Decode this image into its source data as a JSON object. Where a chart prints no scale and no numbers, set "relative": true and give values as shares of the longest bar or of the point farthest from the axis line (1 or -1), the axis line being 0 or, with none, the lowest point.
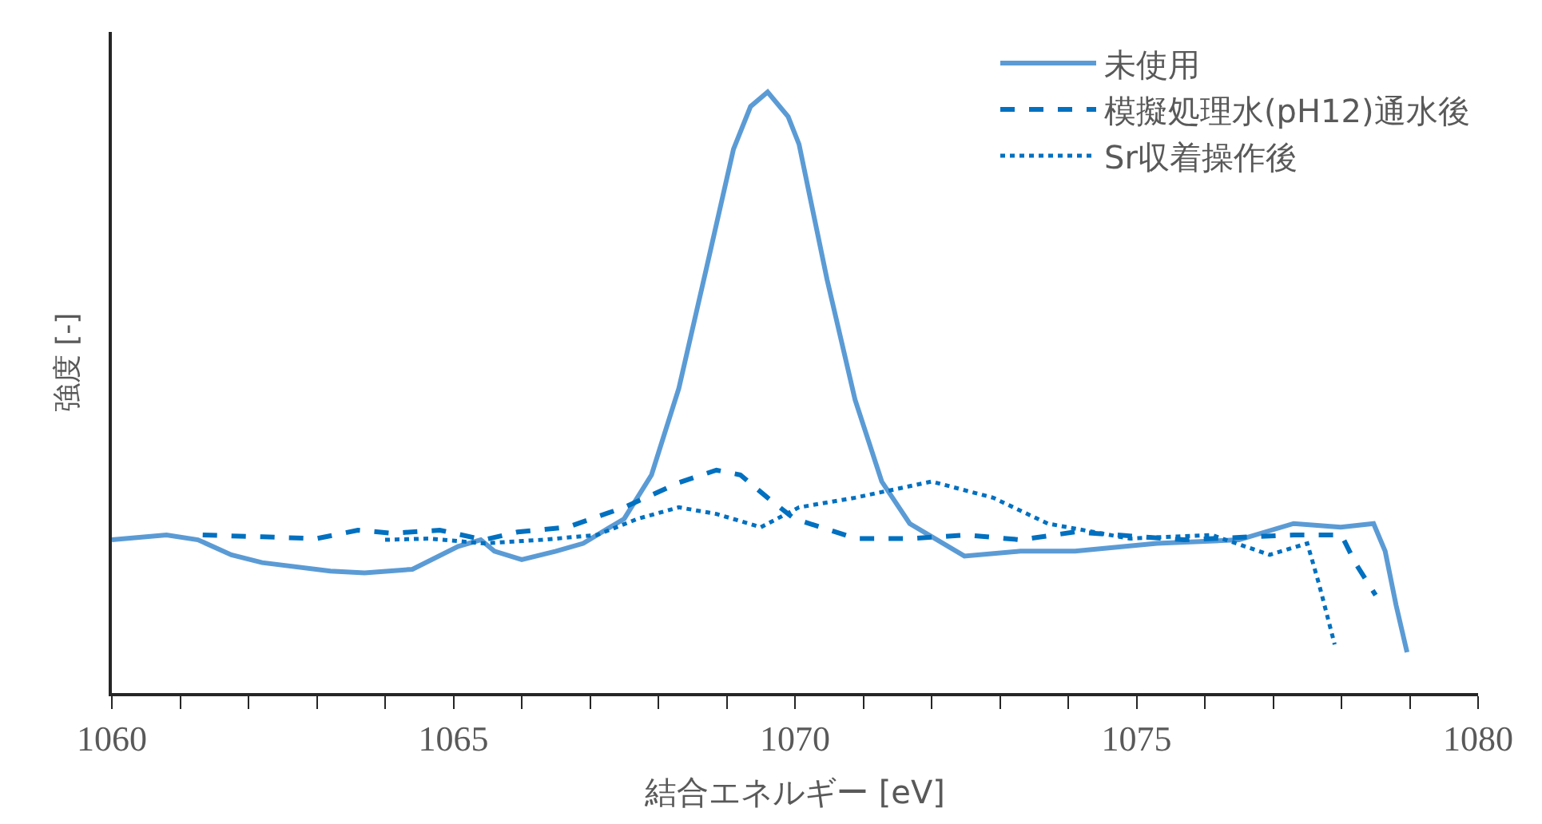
{
  "chart_data": {
    "type": "line",
    "relative": true,
    "xlabel": "結合エネルギー [eV]",
    "ylabel": "強度 [-]",
    "xlim": [
      1060,
      1080
    ],
    "xticks": [
      1060,
      {
        "value": 1061,
        "label": null
      },
      {
        "value": 1062,
        "label": null
      },
      {
        "value": 1063,
        "label": null
      },
      {
        "value": 1064,
        "label": null
      },
      1065,
      {
        "value": 1066,
        "label": null
      },
      {
        "value": 1067,
        "label": null
      },
      {
        "value": 1068,
        "label": null
      },
      {
        "value": 1069,
        "label": null
      },
      1070,
      {
        "value": 1071,
        "label": null
      },
      {
        "value": 1072,
        "label": null
      },
      {
        "value": 1073,
        "label": null
      },
      {
        "value": 1074,
        "label": null
      },
      1075,
      {
        "value": 1076,
        "label": null
      },
      {
        "value": 1077,
        "label": null
      },
      {
        "value": 1078,
        "label": null
      },
      {
        "value": 1079,
        "label": null
      },
      1080
    ],
    "tick_labels": "x",
    "grid": false,
    "legend": "top right",
    "marker": "none",
    "series": [
      {
        "name": "未使用",
        "color": "#5b9bd5",
        "line_style": "solid",
        "x": [
          1060,
          1060.8,
          1061.26,
          1061.75,
          1062.2,
          1063.2,
          1063.7,
          1064.4,
          1065.07,
          1065.4,
          1065.6,
          1066.0,
          1066.5,
          1066.9,
          1067.5,
          1067.9,
          1068.3,
          1068.7,
          1069.1,
          1069.35,
          1069.6,
          1069.9,
          1070.06,
          1070.47,
          1070.88,
          1071.27,
          1071.68,
          1072.48,
          1073.3,
          1074.1,
          1075.3,
          1076.5,
          1077.3,
          1077.99,
          1078.47,
          1078.64,
          1078.8,
          1078.96
        ],
        "values": [
          0.255,
          0.263,
          0.255,
          0.23,
          0.217,
          0.203,
          0.2,
          0.206,
          0.244,
          0.255,
          0.236,
          0.222,
          0.236,
          0.249,
          0.29,
          0.363,
          0.507,
          0.705,
          0.905,
          0.976,
          1.0,
          0.959,
          0.913,
          0.688,
          0.488,
          0.352,
          0.282,
          0.228,
          0.236,
          0.236,
          0.249,
          0.255,
          0.282,
          0.276,
          0.282,
          0.236,
          0.146,
          0.068
        ]
      },
      {
        "name": "模擬処理水(pH12)通水後",
        "color": "#0070c0",
        "line_style": "dashed",
        "x": [
          1061.33,
          1062.2,
          1063.0,
          1063.6,
          1064.1,
          1064.8,
          1065.45,
          1065.94,
          1066.67,
          1067.5,
          1068.3,
          1068.85,
          1069.2,
          1069.6,
          1069.99,
          1070.9,
          1071.7,
          1072.5,
          1073.3,
          1074.1,
          1075.7,
          1077.3,
          1078.0,
          1078.2,
          1078.5
        ],
        "values": [
          0.263,
          0.26,
          0.257,
          0.271,
          0.266,
          0.271,
          0.255,
          0.268,
          0.276,
          0.309,
          0.35,
          0.371,
          0.363,
          0.325,
          0.29,
          0.257,
          0.257,
          0.263,
          0.255,
          0.268,
          0.255,
          0.263,
          0.263,
          0.217,
          0.163
        ]
      },
      {
        "name": "Sr収着操作後",
        "color": "#0070c0",
        "line_style": "dotted",
        "x": [
          1064.0,
          1064.65,
          1065.45,
          1066.3,
          1067.1,
          1067.7,
          1068.3,
          1068.85,
          1069.5,
          1070.06,
          1070.88,
          1072.0,
          1072.9,
          1073.7,
          1074.9,
          1076.1,
          1076.95,
          1077.5,
          1077.67,
          1077.9
        ],
        "values": [
          0.255,
          0.257,
          0.249,
          0.255,
          0.263,
          0.29,
          0.309,
          0.298,
          0.276,
          0.309,
          0.325,
          0.352,
          0.325,
          0.282,
          0.257,
          0.263,
          0.23,
          0.249,
          0.182,
          0.081
        ]
      }
    ]
  }
}
